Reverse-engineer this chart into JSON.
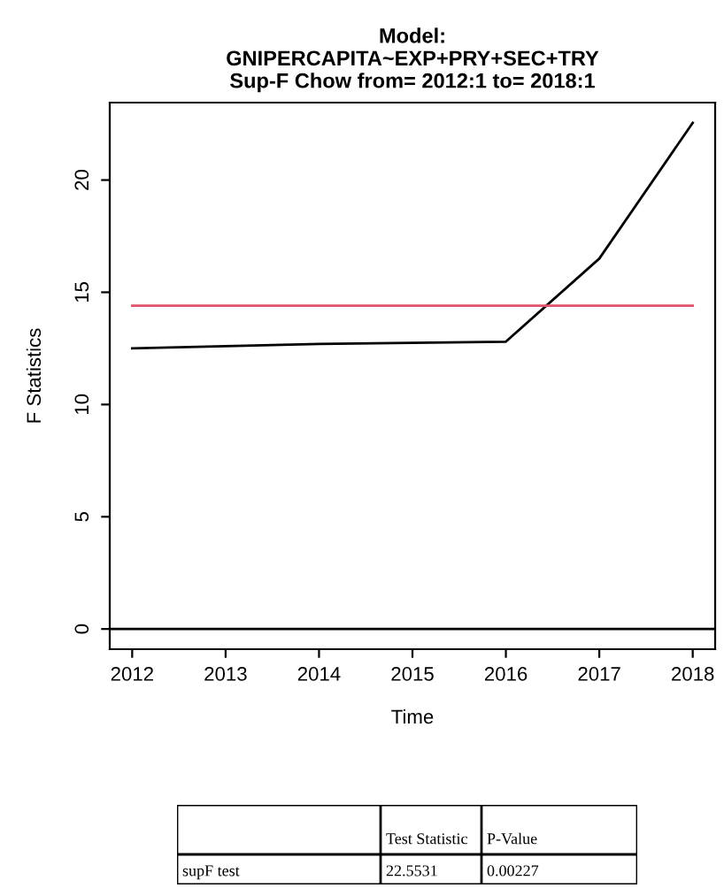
{
  "chart_data": {
    "type": "line",
    "title": "Model:\nGNIPERCAPITA~EXP+PRY+SEC+TRY\nSup-F Chow from= 2012:1 to= 2018:1",
    "xlabel": "Time",
    "ylabel": "F Statistics",
    "series": [
      {
        "color": "#000000",
        "x": [
          2012,
          2013,
          2014,
          2015,
          2016,
          2017,
          2018
        ],
        "values": [
          12.5,
          12.6,
          12.7,
          12.75,
          12.8,
          16.5,
          22.55
        ]
      },
      {
        "color": "#df536b",
        "x": [
          2012,
          2018
        ],
        "values": [
          14.4,
          14.4
        ]
      }
    ],
    "xlim": [
      2011.76,
      2018.24
    ],
    "xticks": [
      2012,
      2013,
      2014,
      2015,
      2016,
      2017,
      2018
    ],
    "ylim": [
      -0.9,
      23.45
    ],
    "yticks": [
      0,
      5,
      10,
      15,
      20
    ],
    "grid": false,
    "ref_lines": [
      {
        "axis": "y",
        "value": 0,
        "color": "#000000"
      }
    ],
    "annotations": [
      "Test Statistic",
      "P-Value",
      "supF test",
      "22.5531",
      "0.00227"
    ]
  }
}
